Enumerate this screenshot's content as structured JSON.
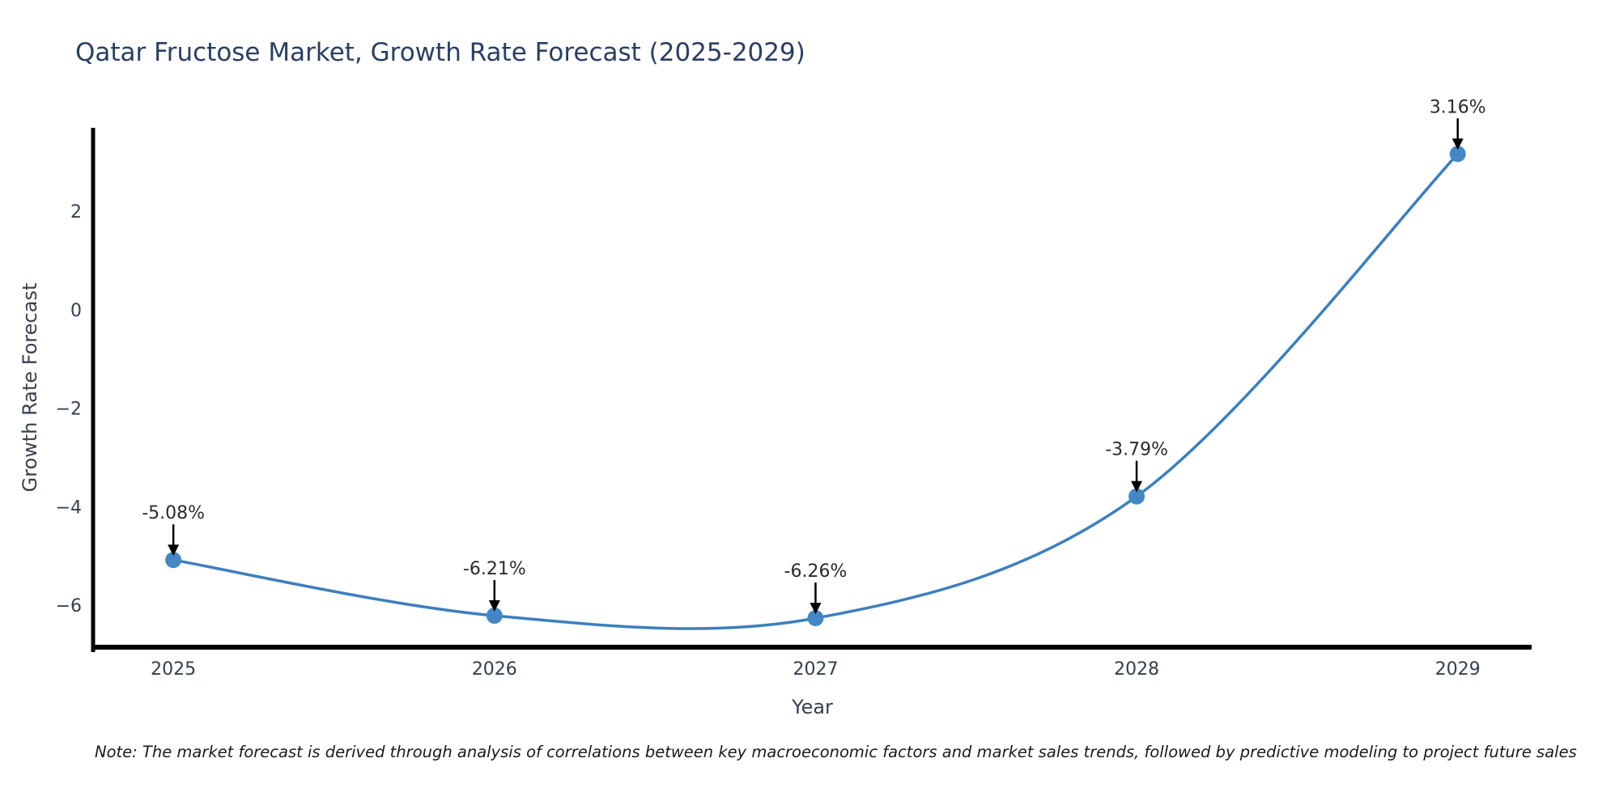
{
  "title": "Qatar Fructose Market, Growth Rate Forecast (2025-2029)",
  "note": "Note: The market forecast is derived through analysis of correlations between key macroeconomic factors and market sales trends, followed by predictive modeling to project future sales",
  "chart_data": {
    "type": "line",
    "title": "Qatar Fructose Market, Growth Rate Forecast (2025-2029)",
    "xlabel": "Year",
    "ylabel": "Growth Rate Forecast",
    "x": [
      2025,
      2026,
      2027,
      2028,
      2029
    ],
    "values": [
      -5.08,
      -6.21,
      -6.26,
      -3.79,
      3.16
    ],
    "series": [
      {
        "name": "Growth Rate Forecast",
        "values": [
          -5.08,
          -6.21,
          -6.26,
          -3.79,
          3.16
        ]
      }
    ],
    "point_labels": [
      "-5.08%",
      "-6.21%",
      "-6.26%",
      "-3.79%",
      "3.16%"
    ],
    "xticks": [
      {
        "value": 2025,
        "label": "2025"
      },
      {
        "value": 2026,
        "label": "2026"
      },
      {
        "value": 2027,
        "label": "2027"
      },
      {
        "value": 2028,
        "label": "2028"
      },
      {
        "value": 2029,
        "label": "2029"
      }
    ],
    "yticks": [
      {
        "value": 2,
        "label": "2"
      },
      {
        "value": 0,
        "label": "0"
      },
      {
        "value": -2,
        "label": "−2"
      },
      {
        "value": -4,
        "label": "−4"
      },
      {
        "value": -6,
        "label": "−6"
      }
    ],
    "xlim": [
      2024.75,
      2029.23
    ],
    "ylim": [
      -6.85,
      3.69
    ],
    "grid": false,
    "legend": null,
    "line_smoothing": "spline",
    "colors": {
      "line": "#3d7fbe",
      "marker": "#4487c4",
      "axis": "#000000",
      "arrow": "#000000",
      "annotation_text": "#2b2b2b",
      "tick_label": "#333f4e",
      "axis_label": "#36404e",
      "title": "#2a3f5f",
      "note": "#1a1a1a",
      "background": "#ffffff"
    }
  }
}
